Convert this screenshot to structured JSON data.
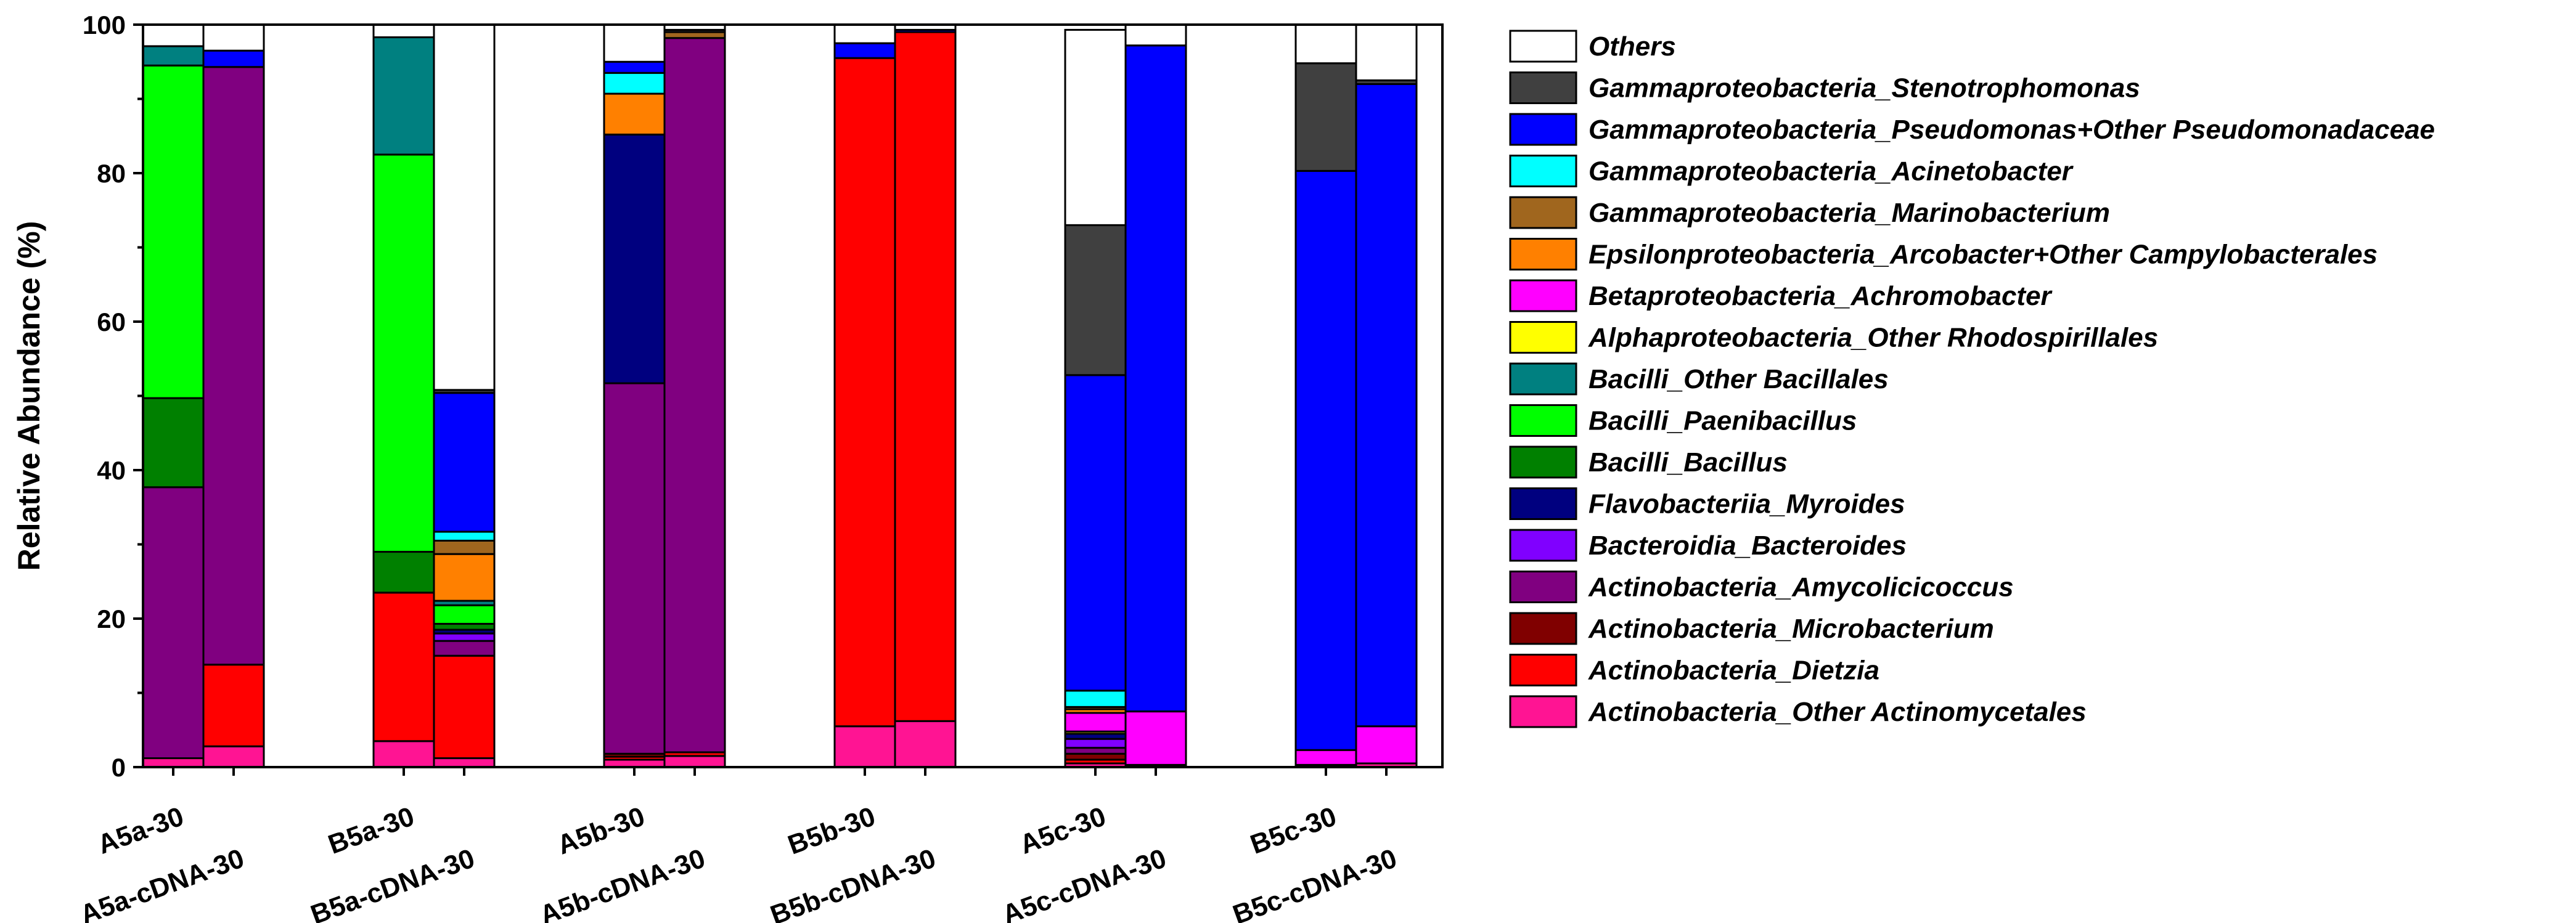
{
  "chart_data": {
    "type": "bar",
    "stacked": true,
    "title": "",
    "xlabel": "",
    "ylabel": "Relative Abundance (%)",
    "ylim": [
      0,
      100
    ],
    "yticks": [
      0,
      20,
      40,
      60,
      80,
      100
    ],
    "grid": false,
    "legend_position": "right",
    "categories": [
      "A5a-30",
      "A5a-cDNA-30",
      "B5a-30",
      "B5a-cDNA-30",
      "A5b-30",
      "A5b-cDNA-30",
      "B5b-30",
      "B5b-cDNA-30",
      "A5c-30",
      "A5c-cDNA-30",
      "B5c-30",
      "B5c-cDNA-30"
    ],
    "series": [
      {
        "name": "Actinobacteria_Other Actinomycetales",
        "color": "#FF1493",
        "values": [
          1.2,
          2.8,
          3.5,
          1.2,
          1.0,
          1.5,
          5.5,
          6.2,
          0.5,
          0.3,
          0.3,
          0.5
        ]
      },
      {
        "name": "Actinobacteria_Dietzia",
        "color": "#FF0000",
        "values": [
          0,
          11.0,
          20.0,
          13.8,
          0.4,
          0.5,
          90.0,
          92.8,
          0.5,
          0,
          0,
          0
        ]
      },
      {
        "name": "Actinobacteria_Microbacterium",
        "color": "#800000",
        "values": [
          0,
          0,
          0,
          0,
          0.4,
          0,
          0,
          0,
          0.8,
          0,
          0,
          0
        ]
      },
      {
        "name": "Actinobacteria_Amycolicicoccus",
        "color": "#800080",
        "values": [
          36.5,
          80.5,
          0,
          2.0,
          49.9,
          96.2,
          0,
          0,
          0.8,
          0,
          0,
          0
        ]
      },
      {
        "name": "Bacteroidia_Bacteroides",
        "color": "#8000FF",
        "values": [
          0,
          0,
          0,
          1.0,
          0,
          0,
          0,
          0,
          1.2,
          0,
          0,
          0
        ]
      },
      {
        "name": "Flavobacteriia_Myroides",
        "color": "#00007F",
        "values": [
          0,
          0,
          0,
          0.5,
          33.5,
          0,
          0,
          0,
          0.7,
          0,
          0,
          0
        ]
      },
      {
        "name": "Bacilli_Bacillus",
        "color": "#008000",
        "values": [
          12.0,
          0,
          5.5,
          0.8,
          0,
          0,
          0,
          0,
          0,
          0,
          0,
          0
        ]
      },
      {
        "name": "Bacilli_Paenibacillus",
        "color": "#00FF00",
        "values": [
          44.8,
          0,
          53.5,
          2.5,
          0,
          0,
          0,
          0,
          0,
          0,
          0,
          0
        ]
      },
      {
        "name": "Bacilli_Other Bacillales",
        "color": "#008080",
        "values": [
          2.6,
          0,
          15.8,
          0.6,
          0,
          0,
          0,
          0,
          0,
          0,
          0,
          0
        ]
      },
      {
        "name": "Alphaproteobacteria_Other Rhodospirillales",
        "color": "#FFFF00",
        "values": [
          0,
          0,
          0,
          0,
          0,
          0,
          0,
          0,
          0.3,
          0,
          0,
          0
        ]
      },
      {
        "name": "Betaproteobacteria_Achromobacter",
        "color": "#FF00FF",
        "values": [
          0,
          0,
          0,
          0,
          0,
          0,
          0,
          0,
          2.5,
          7.2,
          2.0,
          5.0
        ]
      },
      {
        "name": "Epsilonproteobacteria_Arcobacter+Other Campylobacterales",
        "color": "#FF8000",
        "values": [
          0,
          0,
          0,
          6.3,
          5.5,
          0,
          0,
          0,
          0.5,
          0,
          0,
          0
        ]
      },
      {
        "name": "Gammaproteobacteria_Marinobacterium",
        "color": "#A0661E",
        "values": [
          0,
          0,
          0,
          1.8,
          0,
          0.8,
          0,
          0,
          0.3,
          0,
          0,
          0
        ]
      },
      {
        "name": "Gammaproteobacteria_Acinetobacter",
        "color": "#00FFFF",
        "values": [
          0,
          0,
          0,
          1.2,
          2.8,
          0,
          0,
          0,
          2.2,
          0,
          0,
          0
        ]
      },
      {
        "name": "Gammaproteobacteria_Pseudomonas+Other Pseudomonadaceae",
        "color": "#0000FF",
        "values": [
          0,
          2.2,
          0,
          18.7,
          1.5,
          0,
          2.0,
          0.3,
          42.5,
          89.7,
          78.0,
          86.5
        ]
      },
      {
        "name": "Gammaproteobacteria_Stenotrophomonas",
        "color": "#404040",
        "values": [
          0,
          0,
          0,
          0.4,
          0,
          0.3,
          0,
          0,
          20.2,
          0,
          14.5,
          0.5
        ]
      },
      {
        "name": "Others",
        "color": "#FFFFFF",
        "values": [
          2.9,
          3.5,
          1.7,
          49.2,
          5.0,
          0.7,
          2.5,
          0.7,
          26.3,
          2.8,
          5.2,
          7.5
        ]
      }
    ],
    "legend_order": [
      "Others",
      "Gammaproteobacteria_Stenotrophomonas",
      "Gammaproteobacteria_Pseudomonas+Other Pseudomonadaceae",
      "Gammaproteobacteria_Acinetobacter",
      "Gammaproteobacteria_Marinobacterium",
      "Epsilonproteobacteria_Arcobacter+Other Campylobacterales",
      "Betaproteobacteria_Achromobacter",
      "Alphaproteobacteria_Other Rhodospirillales",
      "Bacilli_Other Bacillales",
      "Bacilli_Paenibacillus",
      "Bacilli_Bacillus",
      "Flavobacteriia_Myroides",
      "Bacteroidia_Bacteroides",
      "Actinobacteria_Amycolicicoccus",
      "Actinobacteria_Microbacterium",
      "Actinobacteria_Dietzia",
      "Actinobacteria_Other Actinomycetales"
    ]
  }
}
